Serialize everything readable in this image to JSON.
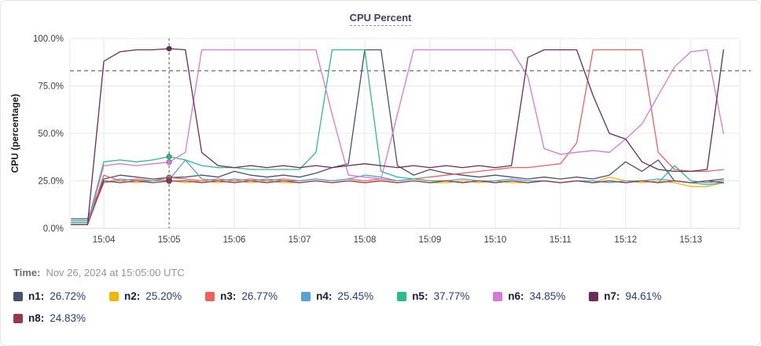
{
  "title": "CPU Percent",
  "time": {
    "label": "Time:",
    "value": "Nov 26, 2024 at 15:05:00 UTC"
  },
  "chart_data": {
    "type": "line",
    "title": "CPU Percent",
    "xlabel": "",
    "ylabel": "CPU (percentage)",
    "x_unit": "minutes after 15:00 (UTC)",
    "x_range": [
      3.48,
      13.75
    ],
    "y_range": [
      0,
      100
    ],
    "grid": true,
    "legend_position": "bottom",
    "threshold_line": {
      "value": 83,
      "style": "dashed",
      "color": "#444444"
    },
    "cursor": {
      "x": 5,
      "time": "15:05:00",
      "style": "dashed-vertical"
    },
    "x_ticks": [
      {
        "value": 4,
        "label": "15:04"
      },
      {
        "value": 5,
        "label": "15:05"
      },
      {
        "value": 6,
        "label": "15:06"
      },
      {
        "value": 7,
        "label": "15:07"
      },
      {
        "value": 8,
        "label": "15:08"
      },
      {
        "value": 9,
        "label": "15:09"
      },
      {
        "value": 10,
        "label": "15:10"
      },
      {
        "value": 11,
        "label": "15:11"
      },
      {
        "value": 12,
        "label": "15:12"
      },
      {
        "value": 13,
        "label": "15:13"
      }
    ],
    "y_ticks": [
      {
        "value": 0,
        "label": "0.0%"
      },
      {
        "value": 25,
        "label": "25.0%"
      },
      {
        "value": 50,
        "label": "50.0%"
      },
      {
        "value": 75,
        "label": "75.0%"
      },
      {
        "value": 100,
        "label": "100.0%"
      }
    ],
    "x": [
      3.5,
      3.75,
      4,
      4.25,
      4.5,
      4.75,
      5,
      5.25,
      5.5,
      5.75,
      6,
      6.25,
      6.5,
      6.75,
      7,
      7.25,
      7.5,
      7.75,
      8,
      8.25,
      8.5,
      8.75,
      9,
      9.25,
      9.5,
      9.75,
      10,
      10.25,
      10.5,
      10.75,
      11,
      11.25,
      11.5,
      11.75,
      12,
      12.25,
      12.5,
      12.75,
      13,
      13.25,
      13.5
    ],
    "series": [
      {
        "name": "n1",
        "color": "#47536e",
        "cursor_value": "26.72%",
        "values": [
          5,
          5,
          26,
          28,
          27,
          26,
          26.72,
          27,
          28,
          27,
          30,
          28,
          27,
          28,
          27,
          29,
          32,
          34,
          94,
          94,
          33,
          28,
          31,
          29,
          28,
          27,
          28,
          27,
          26,
          27,
          26,
          27,
          26,
          28,
          35,
          30,
          36,
          25,
          24,
          25,
          26
        ]
      },
      {
        "name": "n2",
        "color": "#f2b705",
        "cursor_value": "25.20%",
        "values": [
          3,
          3,
          24,
          25,
          24,
          25,
          25.2,
          24,
          25,
          24,
          25,
          24,
          25,
          24,
          24,
          25,
          24,
          25,
          24,
          25,
          24,
          25,
          24,
          24,
          25,
          24,
          25,
          24,
          24,
          25,
          24,
          25,
          24,
          27,
          25,
          24,
          25,
          24,
          22,
          22,
          24
        ]
      },
      {
        "name": "n3",
        "color": "#ee625c",
        "cursor_value": "26.77%",
        "values": [
          2,
          2,
          28,
          25,
          26,
          25,
          26.77,
          26,
          25,
          26,
          25,
          26,
          25,
          26,
          25,
          26,
          25,
          26,
          25,
          26,
          25,
          26,
          27,
          28,
          29,
          30,
          31,
          32,
          32,
          33,
          34,
          45,
          94,
          94,
          94,
          94,
          40,
          31,
          30,
          30,
          31
        ]
      },
      {
        "name": "n4",
        "color": "#55a2d5",
        "cursor_value": "25.45%",
        "values": [
          4,
          4,
          24,
          26,
          25,
          25,
          25.45,
          36,
          26,
          25,
          26,
          25,
          26,
          25,
          25,
          26,
          25,
          26,
          28,
          27,
          25,
          26,
          25,
          25,
          26,
          25,
          25,
          26,
          25,
          25,
          24,
          25,
          25,
          24,
          25,
          25,
          26,
          25,
          24,
          23,
          24
        ]
      },
      {
        "name": "n5",
        "color": "#2abd8b",
        "cursor_value": "37.77%",
        "values": [
          3,
          3,
          35,
          36,
          35,
          36,
          37.77,
          36,
          33,
          32,
          32,
          31,
          31,
          31,
          31,
          40,
          94,
          94,
          94,
          30,
          27,
          26,
          25,
          25,
          24,
          25,
          24,
          25,
          24,
          25,
          24,
          25,
          24,
          25,
          24,
          25,
          24,
          33,
          25,
          24,
          25
        ]
      },
      {
        "name": "n6",
        "color": "#d878d8",
        "cursor_value": "34.85%",
        "values": [
          2,
          2,
          33,
          34,
          33,
          34,
          34.85,
          40,
          94,
          94,
          94,
          94,
          94,
          94,
          94,
          94,
          60,
          28,
          27,
          26,
          60,
          94,
          94,
          94,
          94,
          94,
          94,
          94,
          80,
          42,
          39,
          40,
          41,
          40,
          47,
          55,
          70,
          85,
          93,
          94,
          50
        ]
      },
      {
        "name": "n7",
        "color": "#6e2a58",
        "cursor_value": "94.61%",
        "values": [
          2,
          2,
          88,
          93,
          94,
          94,
          94.61,
          94,
          40,
          33,
          32,
          33,
          32,
          33,
          32,
          33,
          32,
          33,
          34,
          33,
          32,
          33,
          32,
          33,
          32,
          33,
          32,
          33,
          90,
          94,
          94,
          94,
          70,
          50,
          47,
          35,
          31,
          30,
          30,
          31,
          94
        ]
      },
      {
        "name": "n8",
        "color": "#963a49",
        "cursor_value": "24.83%",
        "values": [
          2,
          2,
          25,
          24,
          25,
          24,
          24.83,
          25,
          24,
          25,
          24,
          25,
          24,
          25,
          24,
          25,
          24,
          25,
          24,
          25,
          24,
          25,
          24,
          25,
          24,
          25,
          24,
          25,
          24,
          25,
          24,
          25,
          24,
          25,
          24,
          25,
          24,
          25,
          24,
          25,
          24
        ]
      }
    ]
  }
}
